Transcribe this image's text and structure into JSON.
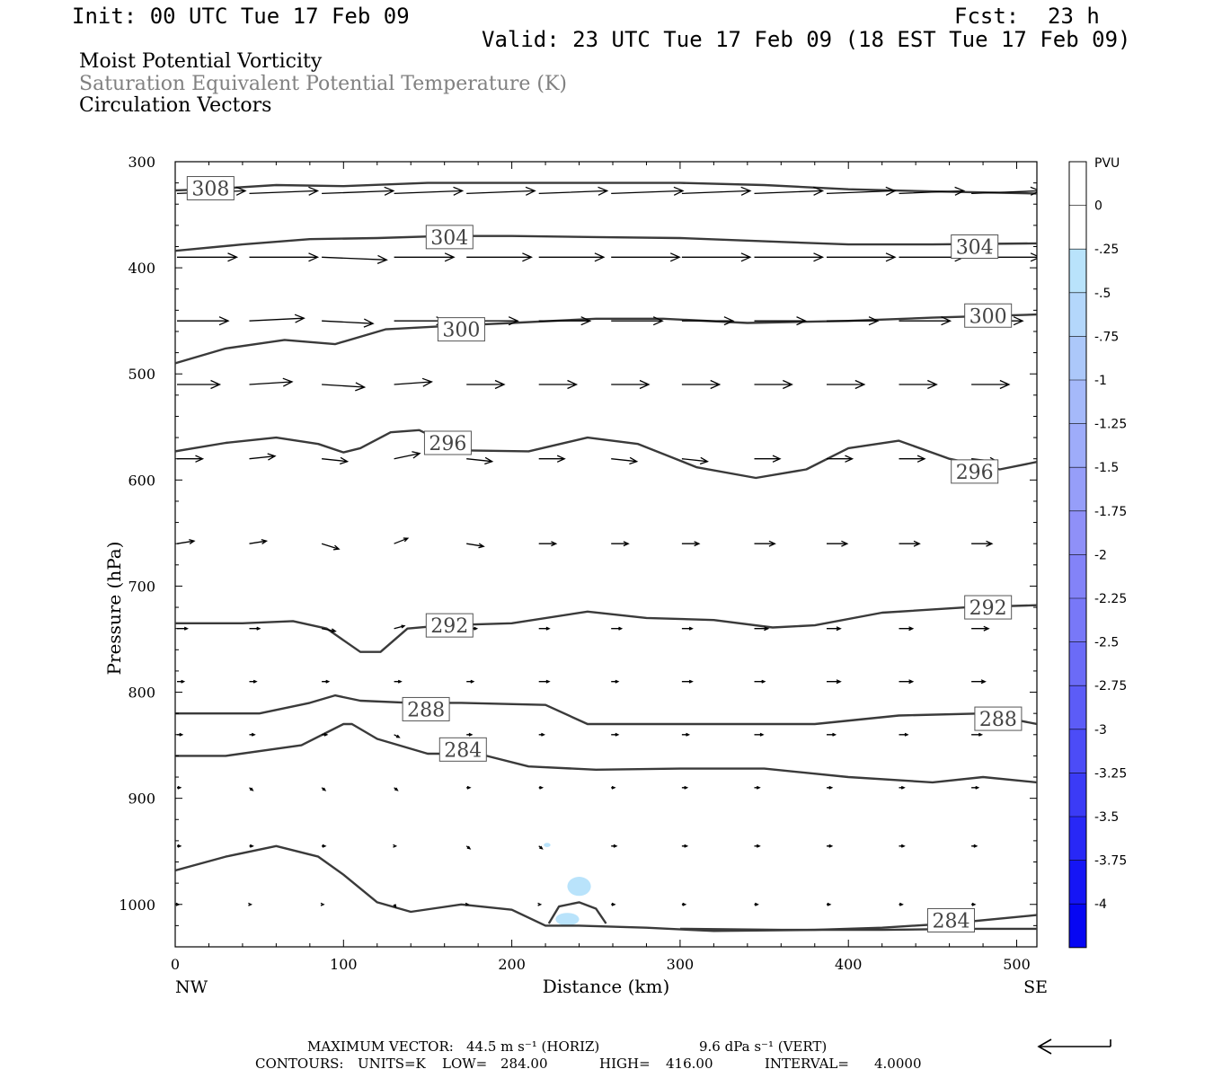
{
  "header": {
    "init": "Init: 00 UTC Tue 17 Feb 09",
    "fcst_label": "Fcst:",
    "fcst_value": "23 h",
    "valid": "Valid: 23 UTC Tue 17 Feb 09 (18 EST Tue 17 Feb 09)"
  },
  "legend_titles": {
    "line1": "Moist Potential Vorticity",
    "line2": "Saturation Equivalent Potential Temperature (K)",
    "line3": "Circulation Vectors"
  },
  "colorbar": {
    "unit": "PVU",
    "labels": [
      "0",
      "-.25",
      "-.5",
      "-.75",
      "-1",
      "-1.25",
      "-1.5",
      "-1.75",
      "-2",
      "-2.25",
      "-2.5",
      "-2.75",
      "-3",
      "-3.25",
      "-3.5",
      "-3.75",
      "-4"
    ],
    "colors": [
      "#ffffff",
      "#ffffff",
      "#b9e3fb",
      "#b4d7fb",
      "#acc8fa",
      "#a5b9fa",
      "#9eacfa",
      "#969ef9",
      "#8f90f8",
      "#8383f8",
      "#7878f8",
      "#6b6bf7",
      "#5c5cf7",
      "#4c4cf7",
      "#3b3bf6",
      "#2828f6",
      "#1515f5",
      "#0606f3"
    ],
    "color_note_grey": "#808080"
  },
  "footer": {
    "max_vector_label": "MAXIMUM VECTOR:",
    "max_vector_horiz": "44.5 m s⁻¹ (HORIZ)",
    "max_vector_vert": "9.6 dPa s⁻¹ (VERT)",
    "contours_label": "CONTOURS:",
    "units": "UNITS=K",
    "low": "LOW=",
    "low_val": "284.00",
    "high": "HIGH=",
    "high_val": "416.00",
    "interval": "INTERVAL=",
    "interval_val": "4.0000"
  },
  "chart_data": {
    "type": "line",
    "xlabel": "Distance (km)",
    "ylabel": "Pressure (hPa)",
    "x_range": [
      0,
      512
    ],
    "y_range": [
      300,
      1040
    ],
    "y_inverted": true,
    "x_ticks": [
      0,
      100,
      200,
      300,
      400,
      500
    ],
    "y_ticks": [
      300,
      400,
      500,
      600,
      700,
      800,
      900,
      1000
    ],
    "x_end_labels": {
      "left": "NW",
      "right": "SE"
    },
    "contours": [
      {
        "name": "308",
        "labels": [
          {
            "x": 21,
            "p": 325
          }
        ],
        "x": [
          0,
          20,
          60,
          100,
          150,
          200,
          250,
          300,
          350,
          400,
          450,
          512
        ],
        "p": [
          327,
          326,
          322,
          323,
          320,
          320,
          320,
          320,
          322,
          326,
          328,
          330
        ]
      },
      {
        "name": "304",
        "labels": [
          {
            "x": 163,
            "p": 371
          },
          {
            "x": 475,
            "p": 380
          }
        ],
        "x": [
          0,
          40,
          80,
          120,
          160,
          200,
          250,
          300,
          350,
          400,
          450,
          512
        ],
        "p": [
          384,
          378,
          373,
          372,
          370,
          370,
          371,
          372,
          375,
          378,
          378,
          377
        ]
      },
      {
        "name": "300",
        "labels": [
          {
            "x": 170,
            "p": 458
          },
          {
            "x": 483,
            "p": 445
          }
        ],
        "x": [
          0,
          30,
          65,
          95,
          125,
          160,
          200,
          250,
          290,
          340,
          400,
          450,
          512
        ],
        "p": [
          490,
          476,
          468,
          472,
          458,
          455,
          452,
          448,
          448,
          452,
          450,
          447,
          444
        ]
      },
      {
        "name": "296",
        "labels": [
          {
            "x": 162,
            "p": 565
          },
          {
            "x": 475,
            "p": 592
          }
        ],
        "x": [
          0,
          30,
          60,
          85,
          100,
          110,
          128,
          145,
          170,
          210,
          245,
          275,
          310,
          345,
          375,
          400,
          430,
          460,
          490,
          512
        ],
        "p": [
          573,
          565,
          560,
          566,
          574,
          570,
          555,
          553,
          572,
          573,
          560,
          566,
          588,
          598,
          590,
          570,
          563,
          580,
          590,
          583
        ]
      },
      {
        "name": "292",
        "labels": [
          {
            "x": 163,
            "p": 737
          },
          {
            "x": 483,
            "p": 720
          }
        ],
        "x": [
          0,
          40,
          70,
          90,
          110,
          122,
          138,
          160,
          200,
          245,
          280,
          320,
          355,
          380,
          420,
          470,
          512
        ],
        "p": [
          735,
          735,
          733,
          740,
          762,
          762,
          740,
          737,
          735,
          724,
          730,
          732,
          739,
          737,
          725,
          720,
          718
        ]
      },
      {
        "name": "288",
        "labels": [
          {
            "x": 149,
            "p": 816
          },
          {
            "x": 489,
            "p": 825
          }
        ],
        "x": [
          0,
          50,
          80,
          95,
          110,
          140,
          170,
          220,
          245,
          280,
          330,
          380,
          430,
          480,
          512
        ],
        "p": [
          820,
          820,
          810,
          803,
          808,
          810,
          810,
          812,
          830,
          830,
          830,
          830,
          822,
          820,
          830
        ]
      },
      {
        "name": "284",
        "labels": [
          {
            "x": 171,
            "p": 854
          },
          {
            "x": 461,
            "p": 1015
          }
        ],
        "x": [
          0,
          30,
          75,
          100,
          105,
          120,
          150,
          180,
          210,
          250,
          300,
          350,
          400,
          450,
          480,
          512
        ],
        "p": [
          860,
          860,
          850,
          830,
          830,
          844,
          858,
          858,
          870,
          873,
          872,
          872,
          880,
          885,
          880,
          885
        ]
      },
      {
        "name": "284",
        "labels": [],
        "x": [
          0,
          30,
          60,
          85,
          100,
          120,
          140,
          170,
          200,
          220,
          240,
          280,
          320,
          380,
          420,
          460,
          512
        ],
        "p": [
          968,
          955,
          945,
          955,
          972,
          998,
          1007,
          1000,
          1005,
          1020,
          1020,
          1022,
          1025,
          1024,
          1022,
          1018,
          1010
        ]
      },
      {
        "name": "284",
        "labels": [],
        "x": [
          300,
          360,
          420,
          470,
          512
        ],
        "p": [
          1023,
          1024,
          1024,
          1023,
          1023
        ]
      },
      {
        "name": "",
        "labels": [],
        "x": [
          222,
          228,
          240,
          250,
          256
        ],
        "p": [
          1018,
          1002,
          998,
          1004,
          1018
        ]
      }
    ],
    "pv_shaded": [
      {
        "x": 240,
        "p": 983,
        "rx": 7,
        "ry": 9,
        "value": -0.5
      },
      {
        "x": 233,
        "p": 1014,
        "rx": 7,
        "ry": 6,
        "value": -0.5
      },
      {
        "x": 221,
        "p": 944,
        "rx": 2,
        "ry": 2,
        "value": -0.5
      }
    ],
    "vector_scale_hint": "arrow length proportional to wind",
    "vectors": [
      {
        "p": 330,
        "x": [
          0,
          43,
          86,
          129,
          172,
          215,
          258,
          300,
          343,
          386,
          429,
          472
        ],
        "u": [
          40,
          40,
          42,
          40,
          40,
          40,
          42,
          40,
          40,
          40,
          38,
          40
        ],
        "w": [
          -1,
          -1,
          -1,
          -1,
          -1,
          -1,
          -1,
          -1,
          -1,
          -1,
          -1,
          -1
        ]
      },
      {
        "p": 390,
        "x": [
          0,
          43,
          86,
          129,
          172,
          215,
          258,
          300,
          343,
          386,
          429,
          472
        ],
        "u": [
          35,
          40,
          38,
          35,
          38,
          38,
          40,
          40,
          40,
          40,
          38,
          40
        ],
        "w": [
          0,
          0,
          1,
          0,
          0,
          0,
          0,
          0,
          0,
          0,
          0,
          0
        ]
      },
      {
        "p": 450,
        "x": [
          0,
          43,
          86,
          129,
          172,
          215,
          258,
          300,
          343,
          386,
          429,
          472
        ],
        "u": [
          30,
          32,
          30,
          30,
          30,
          30,
          30,
          30,
          30,
          30,
          30,
          30
        ],
        "w": [
          0,
          -1,
          1,
          0,
          0,
          0,
          0,
          0,
          0,
          0,
          0,
          0
        ]
      },
      {
        "p": 510,
        "x": [
          0,
          43,
          86,
          129,
          172,
          215,
          258,
          300,
          343,
          386,
          429,
          472
        ],
        "u": [
          25,
          25,
          25,
          22,
          22,
          22,
          22,
          22,
          22,
          22,
          22,
          22
        ],
        "w": [
          0,
          -1,
          1,
          -1,
          0,
          0,
          0,
          0,
          0,
          0,
          0,
          0
        ]
      },
      {
        "p": 580,
        "x": [
          0,
          43,
          86,
          129,
          172,
          215,
          258,
          300,
          343,
          386,
          429,
          472
        ],
        "u": [
          15,
          15,
          15,
          15,
          15,
          15,
          15,
          15,
          15,
          15,
          15,
          15
        ],
        "w": [
          0,
          -1,
          1,
          -2,
          1,
          0,
          1,
          1,
          0,
          0,
          0,
          1
        ]
      },
      {
        "p": 660,
        "x": [
          0,
          43,
          86,
          129,
          172,
          215,
          258,
          300,
          343,
          386,
          429,
          472
        ],
        "u": [
          10,
          10,
          10,
          8,
          10,
          10,
          10,
          10,
          12,
          12,
          12,
          12
        ],
        "w": [
          -1,
          -1,
          2,
          -2,
          1,
          0,
          0,
          0,
          0,
          0,
          0,
          0
        ]
      },
      {
        "p": 740,
        "x": [
          0,
          43,
          86,
          129,
          172,
          215,
          258,
          300,
          343,
          386,
          429,
          472
        ],
        "u": [
          6,
          6,
          8,
          6,
          6,
          6,
          6,
          6,
          8,
          8,
          8,
          10
        ],
        "w": [
          0,
          0,
          1,
          -1,
          0,
          0,
          0,
          0,
          0,
          0,
          0,
          0
        ]
      },
      {
        "p": 790,
        "x": [
          0,
          43,
          86,
          129,
          172,
          215,
          258,
          300,
          343,
          386,
          429,
          472
        ],
        "u": [
          4,
          4,
          4,
          4,
          4,
          6,
          4,
          6,
          6,
          8,
          8,
          8
        ],
        "w": [
          0,
          0,
          0,
          0,
          0,
          0,
          0,
          0,
          0,
          0,
          0,
          0
        ]
      },
      {
        "p": 840,
        "x": [
          0,
          43,
          86,
          129,
          172,
          215,
          258,
          300,
          343,
          386,
          429,
          472
        ],
        "u": [
          3,
          3,
          3,
          3,
          3,
          3,
          4,
          4,
          5,
          5,
          5,
          6
        ],
        "w": [
          0,
          0,
          0,
          1,
          0,
          0,
          0,
          0,
          0,
          0,
          0,
          0
        ]
      },
      {
        "p": 890,
        "x": [
          0,
          43,
          86,
          129,
          172,
          215,
          258,
          300,
          343,
          386,
          429,
          472
        ],
        "u": [
          2,
          2,
          2,
          2,
          2,
          2,
          2,
          3,
          3,
          3,
          3,
          4
        ],
        "w": [
          0,
          1,
          1,
          1,
          0,
          0,
          0,
          0,
          0,
          0,
          0,
          0
        ]
      },
      {
        "p": 945,
        "x": [
          0,
          43,
          86,
          129,
          172,
          215,
          258,
          300,
          343,
          386,
          429,
          472
        ],
        "u": [
          2,
          2,
          2,
          1,
          2,
          2,
          3,
          3,
          3,
          3,
          3,
          3
        ],
        "w": [
          0,
          0,
          0,
          0,
          1,
          1,
          0,
          0,
          0,
          0,
          0,
          0
        ]
      },
      {
        "p": 1000,
        "x": [
          0,
          43,
          86,
          129,
          172,
          215,
          258,
          300,
          343,
          386,
          429,
          472
        ],
        "u": [
          1,
          1,
          1,
          1,
          1,
          1,
          2,
          2,
          2,
          2,
          2,
          2
        ],
        "w": [
          0,
          0,
          0,
          1,
          0,
          0,
          0,
          0,
          0,
          0,
          0,
          0
        ]
      }
    ]
  }
}
